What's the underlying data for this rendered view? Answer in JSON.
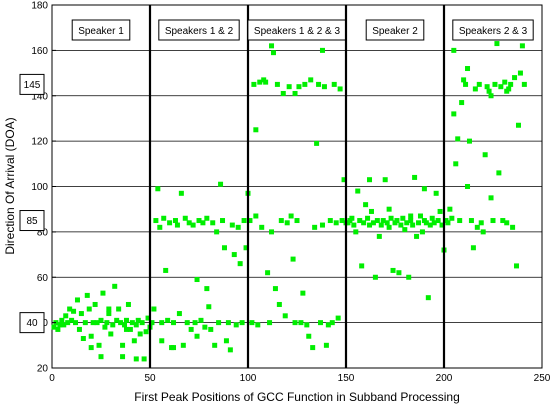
{
  "chart_data": {
    "type": "scatter",
    "xlabel": "First Peak Positions of GCC Function in Subband Processing",
    "ylabel": "Direction Of Arrival (DOA)",
    "xlim": [
      0,
      250
    ],
    "ylim": [
      20,
      180
    ],
    "xticks": [
      0,
      50,
      100,
      150,
      200,
      250
    ],
    "yticks": [
      20,
      40,
      60,
      80,
      100,
      120,
      140,
      160,
      180
    ],
    "grid": "horizontal",
    "marker_color": "#00ee00",
    "boxed_yticks": [
      "145",
      "85",
      "40"
    ],
    "regions": [
      {
        "label": "Speaker 1",
        "x_start": 0,
        "x_end": 50
      },
      {
        "label": "Speakers 1 & 2",
        "x_start": 50,
        "x_end": 100
      },
      {
        "label": "Speakers 1 & 2 & 3",
        "x_start": 100,
        "x_end": 150
      },
      {
        "label": "Speaker 2",
        "x_start": 150,
        "x_end": 200
      },
      {
        "label": "Speakers 2 & 3",
        "x_start": 200,
        "x_end": 250
      }
    ],
    "points": [
      [
        1,
        38
      ],
      [
        2,
        40
      ],
      [
        3,
        37
      ],
      [
        4,
        39
      ],
      [
        5,
        41
      ],
      [
        6,
        39
      ],
      [
        7,
        43
      ],
      [
        8,
        40
      ],
      [
        9,
        46
      ],
      [
        10,
        41
      ],
      [
        11,
        45
      ],
      [
        12,
        40
      ],
      [
        13,
        50
      ],
      [
        14,
        37
      ],
      [
        15,
        44
      ],
      [
        16,
        33
      ],
      [
        17,
        40
      ],
      [
        18,
        52
      ],
      [
        19,
        46
      ],
      [
        20,
        34
      ],
      [
        21,
        40
      ],
      [
        22,
        48
      ],
      [
        23,
        40
      ],
      [
        24,
        30
      ],
      [
        25,
        41
      ],
      [
        26,
        53
      ],
      [
        27,
        38
      ],
      [
        28,
        40
      ],
      [
        29,
        44
      ],
      [
        30,
        35
      ],
      [
        31,
        39
      ],
      [
        32,
        56
      ],
      [
        33,
        41
      ],
      [
        34,
        46
      ],
      [
        35,
        40
      ],
      [
        36,
        30
      ],
      [
        37,
        39
      ],
      [
        38,
        41
      ],
      [
        39,
        48
      ],
      [
        40,
        37
      ],
      [
        41,
        40
      ],
      [
        42,
        32
      ],
      [
        43,
        39
      ],
      [
        44,
        41
      ],
      [
        45,
        35
      ],
      [
        46,
        40
      ],
      [
        47,
        24
      ],
      [
        48,
        36
      ],
      [
        49,
        42
      ],
      [
        50,
        38
      ],
      [
        25,
        25
      ],
      [
        36,
        25
      ],
      [
        43,
        24
      ],
      [
        29,
        46
      ],
      [
        20,
        29
      ],
      [
        38,
        37
      ],
      [
        51,
        40
      ],
      [
        52,
        46
      ],
      [
        53,
        85
      ],
      [
        54,
        99
      ],
      [
        55,
        82
      ],
      [
        56,
        40
      ],
      [
        57,
        86
      ],
      [
        58,
        63
      ],
      [
        59,
        41
      ],
      [
        60,
        84
      ],
      [
        61,
        29
      ],
      [
        62,
        40
      ],
      [
        63,
        85
      ],
      [
        64,
        83
      ],
      [
        65,
        44
      ],
      [
        66,
        97
      ],
      [
        67,
        30
      ],
      [
        68,
        86
      ],
      [
        69,
        40
      ],
      [
        70,
        84
      ],
      [
        71,
        37
      ],
      [
        72,
        83
      ],
      [
        73,
        40
      ],
      [
        74,
        59
      ],
      [
        75,
        85
      ],
      [
        76,
        41
      ],
      [
        77,
        84
      ],
      [
        78,
        38
      ],
      [
        79,
        86
      ],
      [
        80,
        47
      ],
      [
        81,
        37
      ],
      [
        82,
        84
      ],
      [
        83,
        30
      ],
      [
        84,
        80
      ],
      [
        85,
        40
      ],
      [
        86,
        101
      ],
      [
        87,
        85
      ],
      [
        88,
        73
      ],
      [
        89,
        32
      ],
      [
        90,
        40
      ],
      [
        91,
        28
      ],
      [
        92,
        83
      ],
      [
        93,
        70
      ],
      [
        94,
        39
      ],
      [
        95,
        82
      ],
      [
        96,
        66
      ],
      [
        97,
        40
      ],
      [
        98,
        85
      ],
      [
        99,
        73
      ],
      [
        100,
        97
      ],
      [
        56,
        32
      ],
      [
        62,
        29
      ],
      [
        74,
        34
      ],
      [
        79,
        55
      ],
      [
        101,
        85
      ],
      [
        102,
        40
      ],
      [
        103,
        145
      ],
      [
        104,
        125
      ],
      [
        105,
        39
      ],
      [
        106,
        146
      ],
      [
        107,
        82
      ],
      [
        108,
        147
      ],
      [
        109,
        146
      ],
      [
        110,
        62
      ],
      [
        111,
        40
      ],
      [
        112,
        162
      ],
      [
        113,
        159
      ],
      [
        114,
        55
      ],
      [
        115,
        145
      ],
      [
        116,
        48
      ],
      [
        117,
        85
      ],
      [
        118,
        141
      ],
      [
        119,
        43
      ],
      [
        120,
        84
      ],
      [
        121,
        144
      ],
      [
        122,
        87
      ],
      [
        123,
        68
      ],
      [
        124,
        40
      ],
      [
        125,
        85
      ],
      [
        126,
        144
      ],
      [
        127,
        40
      ],
      [
        128,
        53
      ],
      [
        129,
        145
      ],
      [
        130,
        39
      ],
      [
        131,
        34
      ],
      [
        132,
        147
      ],
      [
        133,
        29
      ],
      [
        134,
        82
      ],
      [
        135,
        119
      ],
      [
        136,
        145
      ],
      [
        137,
        40
      ],
      [
        138,
        83
      ],
      [
        139,
        144
      ],
      [
        140,
        30
      ],
      [
        141,
        39
      ],
      [
        142,
        85
      ],
      [
        143,
        40
      ],
      [
        144,
        145
      ],
      [
        145,
        84
      ],
      [
        146,
        42
      ],
      [
        147,
        143
      ],
      [
        148,
        85
      ],
      [
        149,
        103
      ],
      [
        150,
        84
      ],
      [
        104,
        87
      ],
      [
        112,
        80
      ],
      [
        124,
        141
      ],
      [
        138,
        160
      ],
      [
        151,
        84
      ],
      [
        152,
        85
      ],
      [
        153,
        86
      ],
      [
        154,
        83
      ],
      [
        155,
        80
      ],
      [
        156,
        98
      ],
      [
        157,
        85
      ],
      [
        158,
        65
      ],
      [
        159,
        84
      ],
      [
        160,
        92
      ],
      [
        161,
        86
      ],
      [
        162,
        83
      ],
      [
        163,
        89
      ],
      [
        164,
        84
      ],
      [
        165,
        60
      ],
      [
        166,
        85
      ],
      [
        167,
        78
      ],
      [
        168,
        83
      ],
      [
        169,
        85
      ],
      [
        170,
        103
      ],
      [
        171,
        84
      ],
      [
        172,
        82
      ],
      [
        173,
        86
      ],
      [
        174,
        63
      ],
      [
        175,
        84
      ],
      [
        176,
        85
      ],
      [
        177,
        62
      ],
      [
        178,
        83
      ],
      [
        179,
        86
      ],
      [
        180,
        81
      ],
      [
        181,
        84
      ],
      [
        182,
        60
      ],
      [
        183,
        85
      ],
      [
        184,
        83
      ],
      [
        185,
        104
      ],
      [
        186,
        78
      ],
      [
        187,
        84
      ],
      [
        188,
        87
      ],
      [
        189,
        80
      ],
      [
        190,
        85
      ],
      [
        191,
        84
      ],
      [
        192,
        51
      ],
      [
        193,
        83
      ],
      [
        194,
        86
      ],
      [
        195,
        84
      ],
      [
        196,
        97
      ],
      [
        197,
        85
      ],
      [
        198,
        89
      ],
      [
        199,
        83
      ],
      [
        200,
        72
      ],
      [
        162,
        103
      ],
      [
        172,
        90
      ],
      [
        183,
        87
      ],
      [
        190,
        99
      ],
      [
        201,
        85
      ],
      [
        202,
        84
      ],
      [
        203,
        90
      ],
      [
        204,
        86
      ],
      [
        205,
        132
      ],
      [
        206,
        110
      ],
      [
        207,
        121
      ],
      [
        208,
        85
      ],
      [
        209,
        137
      ],
      [
        210,
        147
      ],
      [
        211,
        145
      ],
      [
        212,
        152
      ],
      [
        213,
        120
      ],
      [
        214,
        85
      ],
      [
        215,
        73
      ],
      [
        216,
        143
      ],
      [
        217,
        82
      ],
      [
        218,
        145
      ],
      [
        219,
        84
      ],
      [
        220,
        80
      ],
      [
        221,
        114
      ],
      [
        222,
        144
      ],
      [
        223,
        142
      ],
      [
        224,
        95
      ],
      [
        225,
        85
      ],
      [
        226,
        145
      ],
      [
        227,
        163
      ],
      [
        228,
        106
      ],
      [
        229,
        144
      ],
      [
        230,
        85
      ],
      [
        231,
        146
      ],
      [
        232,
        84
      ],
      [
        233,
        143
      ],
      [
        234,
        145
      ],
      [
        235,
        82
      ],
      [
        236,
        148
      ],
      [
        237,
        65
      ],
      [
        238,
        127
      ],
      [
        239,
        150
      ],
      [
        240,
        162
      ],
      [
        205,
        160
      ],
      [
        212,
        100
      ],
      [
        224,
        140
      ],
      [
        232,
        142
      ],
      [
        241,
        145
      ]
    ]
  }
}
